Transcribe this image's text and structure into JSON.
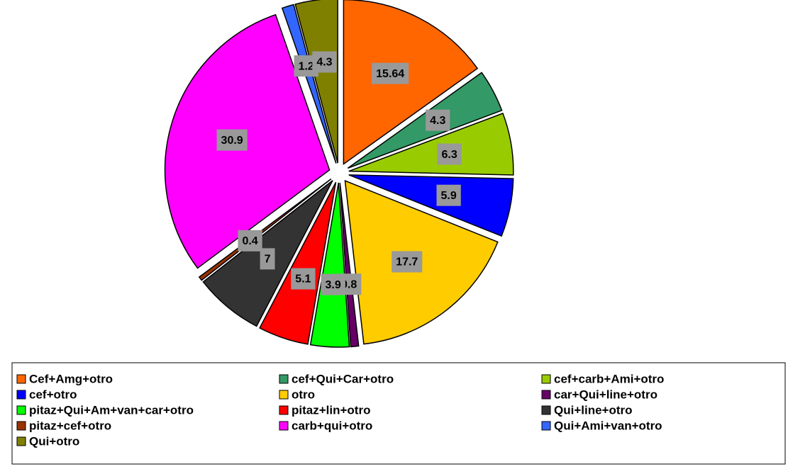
{
  "chart_data": {
    "type": "pie",
    "categories": [
      "Cef+Amg+otro",
      "cef+Qui+Car+otro",
      "cef+carb+Ami+otro",
      "cef+otro",
      "otro",
      "car+Qui+line+otro",
      "pitaz+Qui+Am+van+car+otro",
      "pitaz+lin+otro",
      "Qui+line+otro",
      "pitaz+cef+otro",
      "carb+qui+otro",
      "Qui+Ami+van+otro",
      "Qui+otro"
    ],
    "values": [
      15.64,
      4.3,
      6.3,
      5.9,
      17.7,
      0.8,
      3.9,
      5.1,
      7,
      0.4,
      30.9,
      1.2,
      4.3
    ],
    "colors": [
      "#ff6600",
      "#339966",
      "#99cc00",
      "#0000ff",
      "#ffcc00",
      "#660066",
      "#00ff00",
      "#ff0000",
      "#333333",
      "#993300",
      "#ff00ff",
      "#3366ff",
      "#808000"
    ],
    "legend": "bottom"
  }
}
